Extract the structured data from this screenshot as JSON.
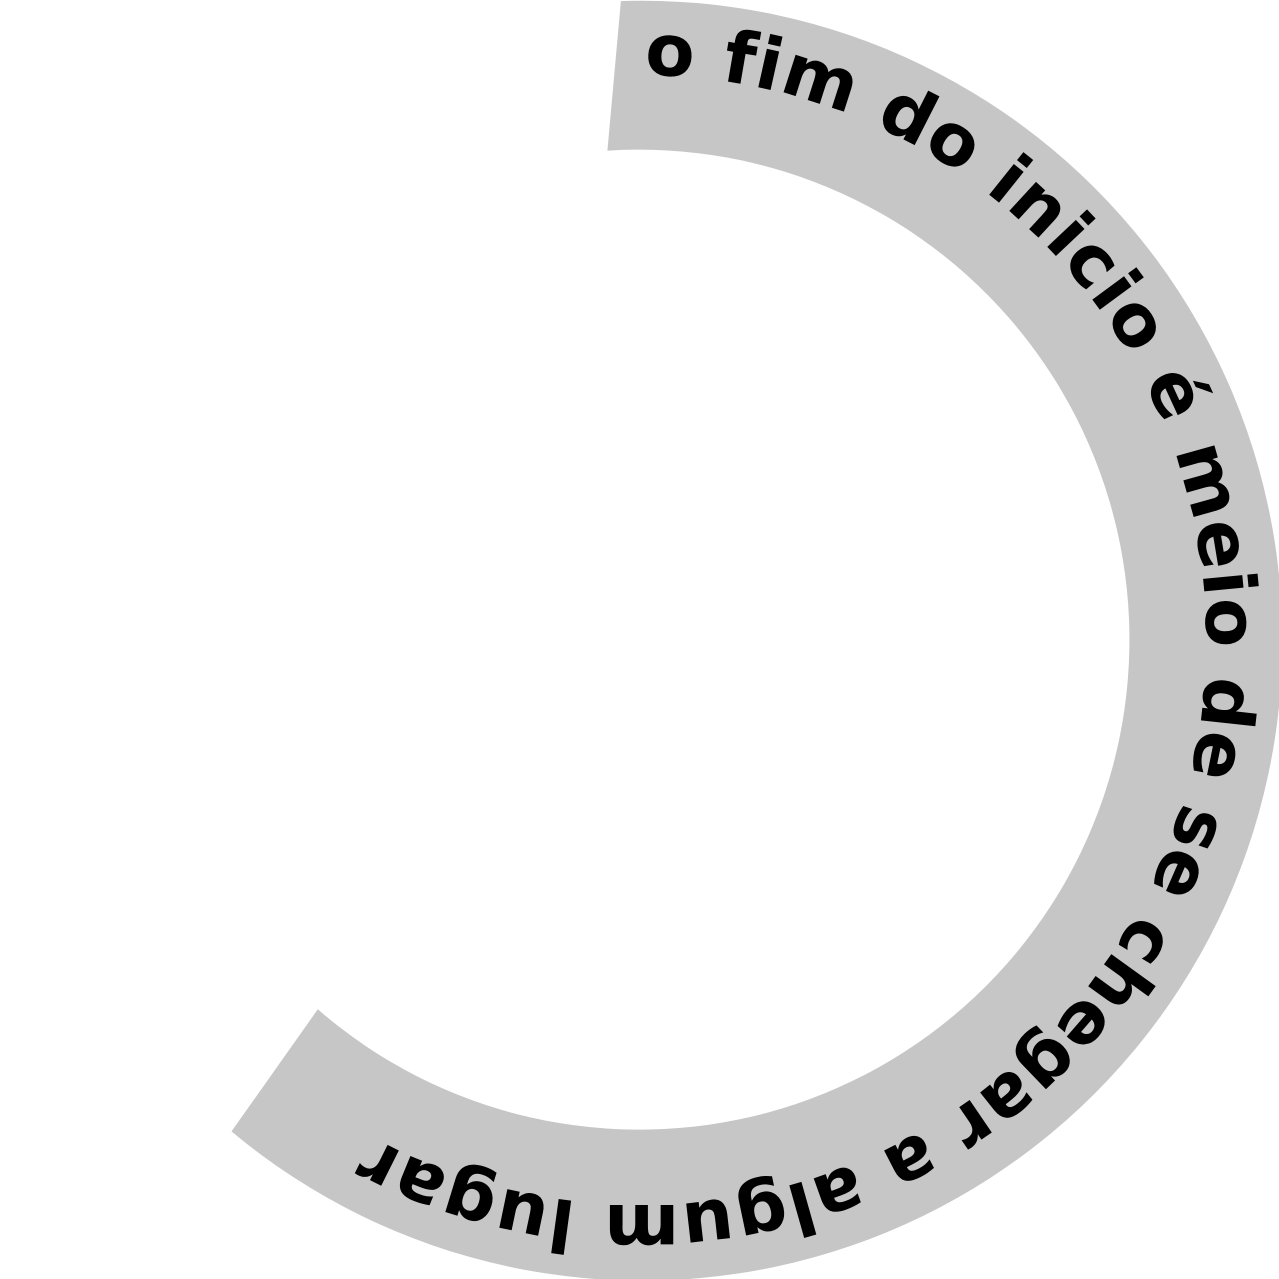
{
  "arc_text": "o fim do inicio é meio de se chegar a algum lugar",
  "colors": {
    "background": "#ffffff",
    "band": "#c6c6c6",
    "text": "#000000"
  }
}
